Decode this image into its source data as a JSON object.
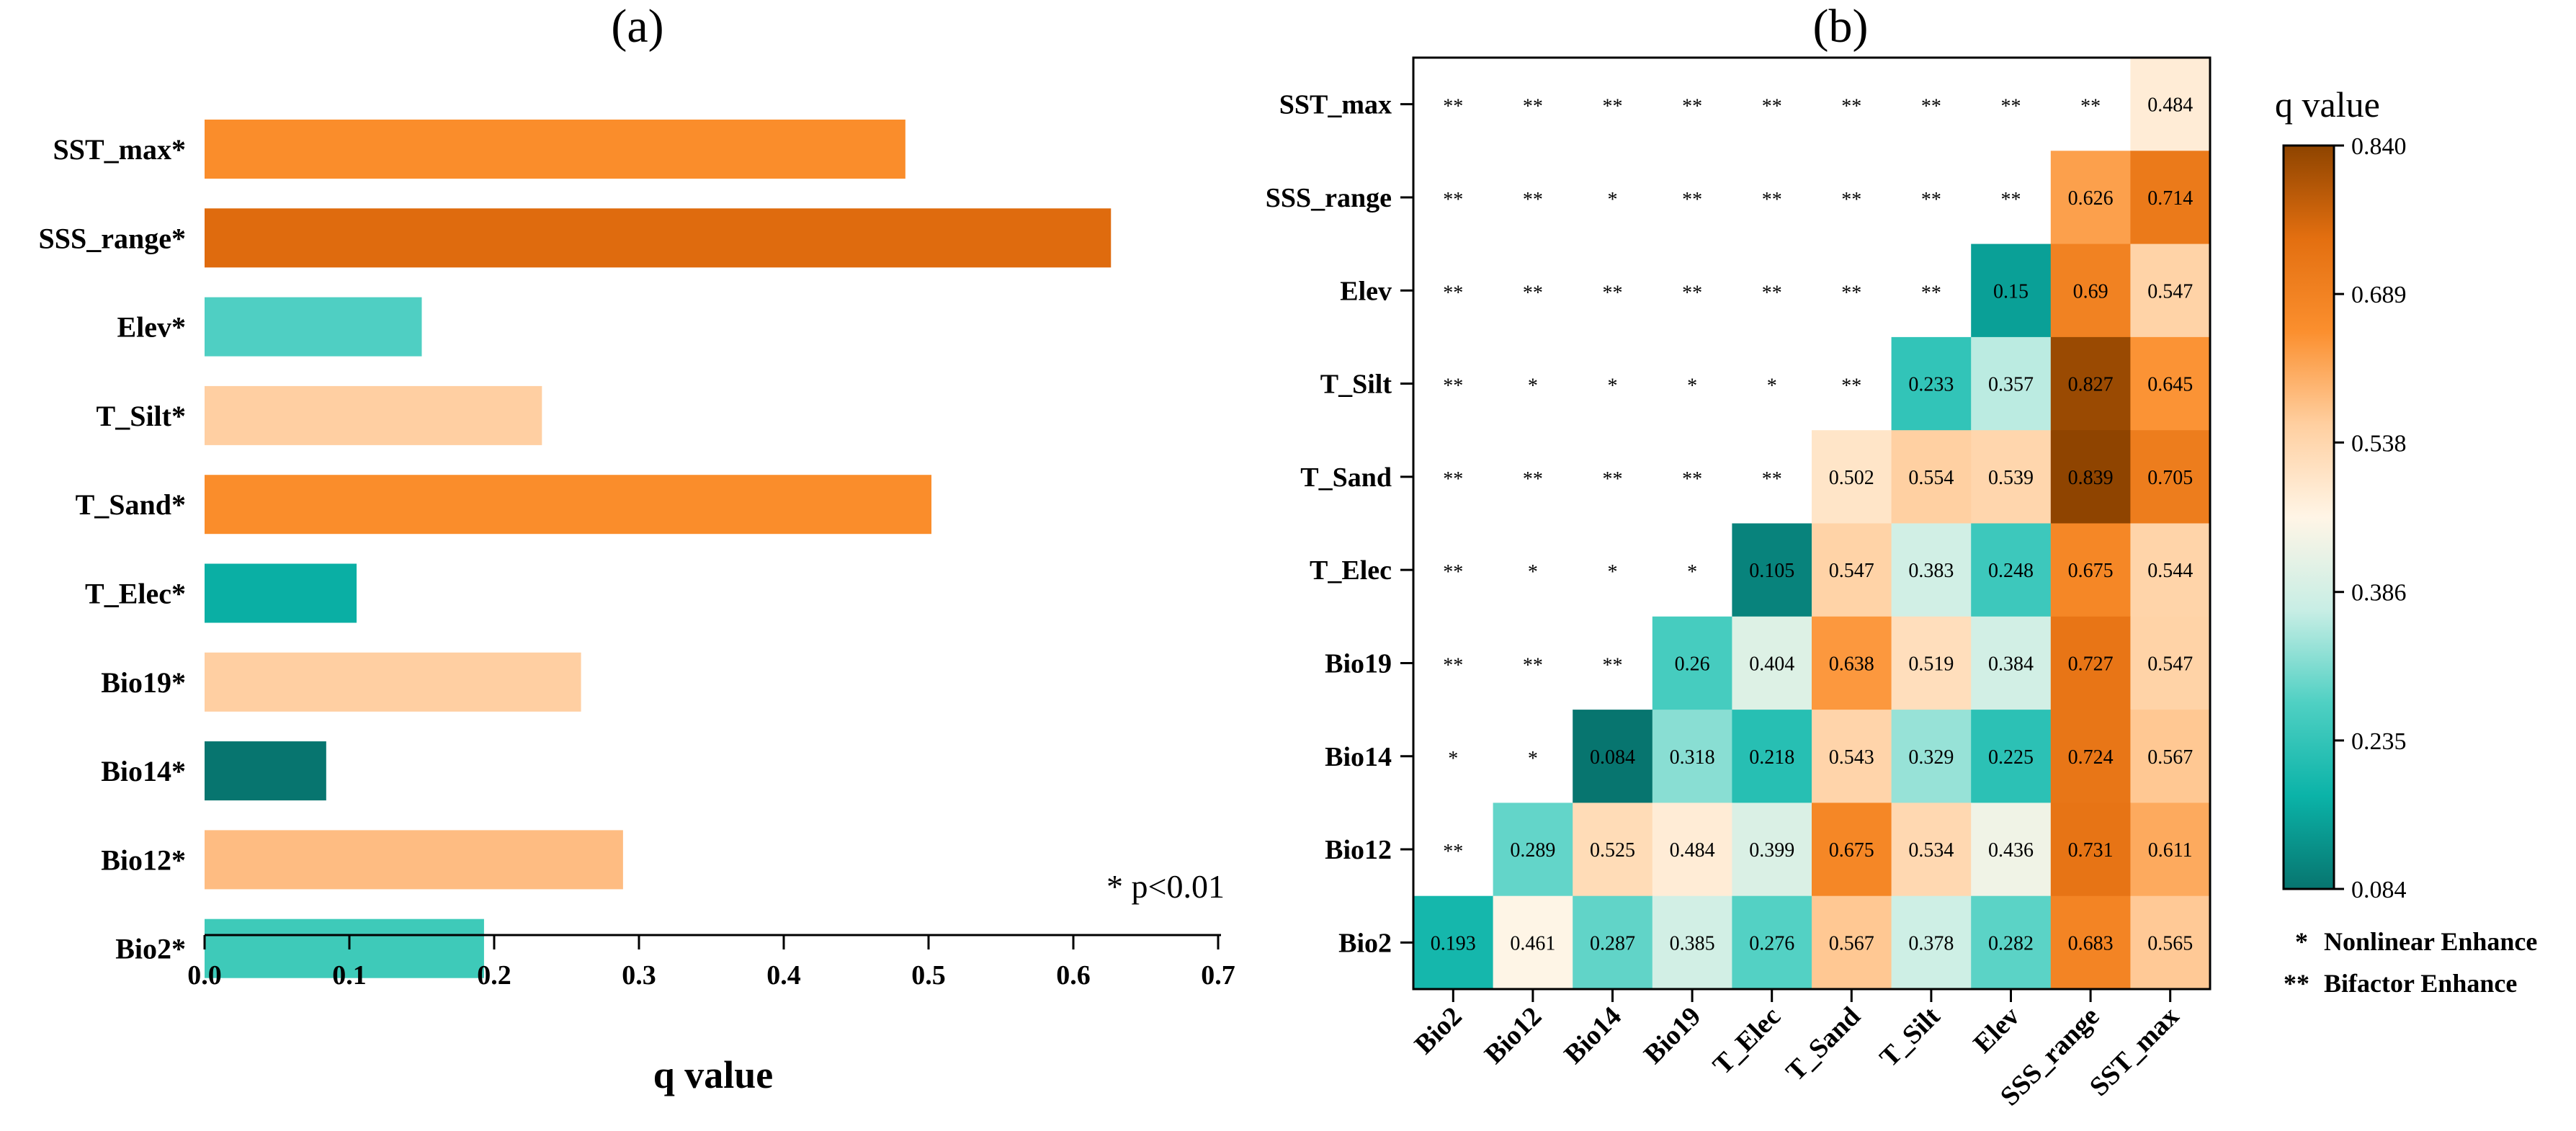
{
  "chart_data": [
    {
      "type": "bar",
      "orientation": "horizontal",
      "title": "(a)",
      "xlabel": "q value",
      "xlim": [
        0.0,
        0.7
      ],
      "xticks": [
        "0.0",
        "0.1",
        "0.2",
        "0.3",
        "0.4",
        "0.5",
        "0.6",
        "0.7"
      ],
      "categories": [
        "SST_max*",
        "SSS_range*",
        "Elev*",
        "T_Silt*",
        "T_Sand*",
        "T_Elec*",
        "Bio19*",
        "Bio14*",
        "Bio12*",
        "Bio2*"
      ],
      "values": [
        0.484,
        0.626,
        0.15,
        0.233,
        0.502,
        0.105,
        0.26,
        0.084,
        0.289,
        0.193
      ],
      "colors": [
        "#FA8D2B",
        "#DF6B0E",
        "#4FCFC3",
        "#FFCFA2",
        "#FA8D2B",
        "#0AAFA4",
        "#FFCFA2",
        "#07756F",
        "#FEBC82",
        "#3ECAB9"
      ],
      "annotation": "* p<0.01"
    },
    {
      "type": "heatmap",
      "title": "(b)",
      "x_labels": [
        "Bio2",
        "Bio12",
        "Bio14",
        "Bio19",
        "T_Elec",
        "T_Sand",
        "T_Silt",
        "Elev",
        "SSS_range",
        "SST_max"
      ],
      "y_labels": [
        "SST_max",
        "SSS_range",
        "Elev",
        "T_Silt",
        "T_Sand",
        "T_Elec",
        "Bio19",
        "Bio14",
        "Bio12",
        "Bio2"
      ],
      "cells": [
        [
          "**",
          "**",
          "**",
          "**",
          "**",
          "**",
          "**",
          "**",
          "**",
          "0.484"
        ],
        [
          "**",
          "**",
          "*",
          "**",
          "**",
          "**",
          "**",
          "**",
          "0.626",
          "0.714"
        ],
        [
          "**",
          "**",
          "**",
          "**",
          "**",
          "**",
          "**",
          "0.15",
          "0.69",
          "0.547"
        ],
        [
          "**",
          "*",
          "*",
          "*",
          "*",
          "**",
          "0.233",
          "0.357",
          "0.827",
          "0.645"
        ],
        [
          "**",
          "**",
          "**",
          "**",
          "**",
          "0.502",
          "0.554",
          "0.539",
          "0.839",
          "0.705"
        ],
        [
          "**",
          "*",
          "*",
          "*",
          "0.105",
          "0.547",
          "0.383",
          "0.248",
          "0.675",
          "0.544"
        ],
        [
          "**",
          "**",
          "**",
          "0.26",
          "0.404",
          "0.638",
          "0.519",
          "0.384",
          "0.727",
          "0.547"
        ],
        [
          "*",
          "*",
          "0.084",
          "0.318",
          "0.218",
          "0.543",
          "0.329",
          "0.225",
          "0.724",
          "0.567"
        ],
        [
          "**",
          "0.289",
          "0.525",
          "0.484",
          "0.399",
          "0.675",
          "0.534",
          "0.436",
          "0.731",
          "0.611"
        ],
        [
          "0.193",
          "0.461",
          "0.287",
          "0.385",
          "0.276",
          "0.567",
          "0.378",
          "0.282",
          "0.683",
          "0.565"
        ]
      ],
      "colorbar": {
        "title": "q value",
        "min": 0.084,
        "max": 0.84,
        "ticks": [
          "0.840",
          "0.689",
          "0.538",
          "0.386",
          "0.235",
          "0.084"
        ],
        "stops": [
          "#07756F",
          "#0BB3A8",
          "#4FD0C3",
          "#C8EEE5",
          "#FFF5E6",
          "#FFCFA0",
          "#FB8F2E",
          "#E36F10",
          "#8E4400"
        ]
      },
      "legend": [
        {
          "symbol": "*",
          "label": "Nonlinear Enhance"
        },
        {
          "symbol": "**",
          "label": "Bifactor Enhance"
        }
      ]
    }
  ]
}
